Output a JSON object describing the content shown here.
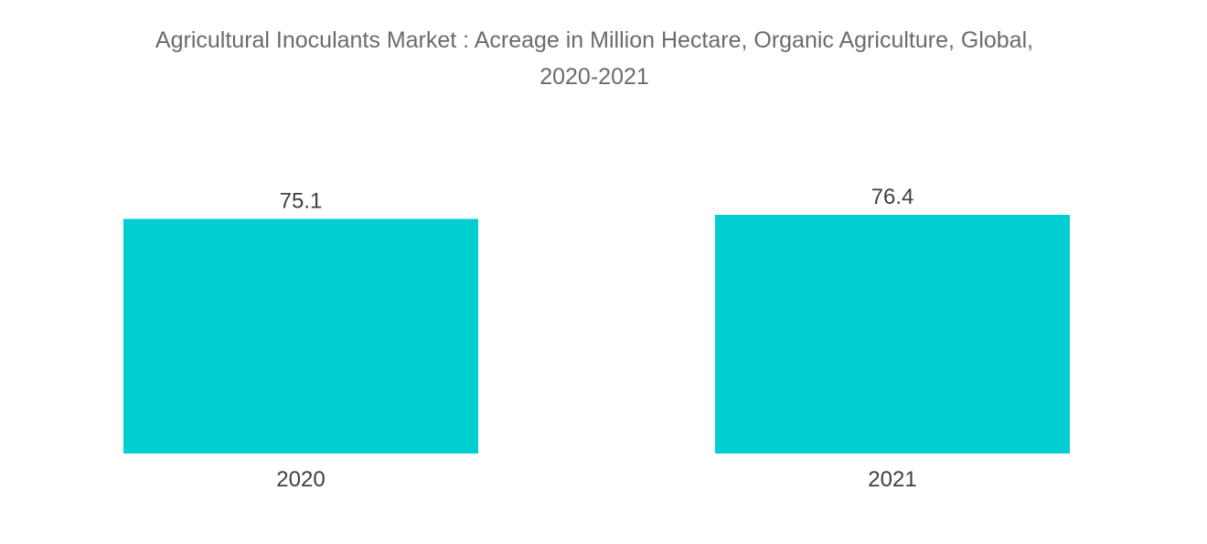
{
  "chart_data": {
    "type": "bar",
    "title_line1": "Agricultural Inoculants Market : Acreage in Million Hectare, Organic Agriculture, Global,",
    "title_line2": "2020-2021",
    "categories": [
      "2020",
      "2021"
    ],
    "values": [
      75.1,
      76.4
    ],
    "value_labels": [
      "75.1",
      "76.4"
    ],
    "bar_color": "#00ced1",
    "xlabel": "",
    "ylabel": "",
    "ylim": [
      0,
      76.4
    ],
    "grid": false,
    "legend": "none"
  }
}
